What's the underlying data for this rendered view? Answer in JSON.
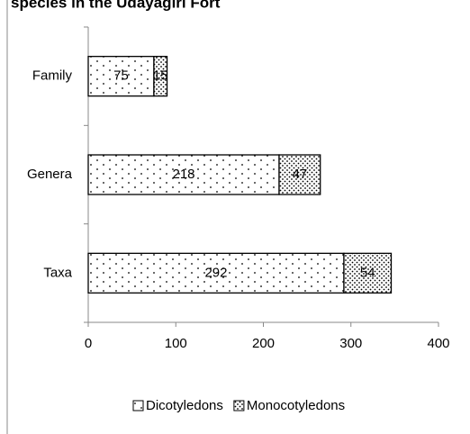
{
  "chart_data": {
    "type": "stacked-barh",
    "title": "species in the Udayagiri Fort",
    "categories": [
      "Family",
      "Genera",
      "Taxa"
    ],
    "series": [
      {
        "name": "Dicotyledons",
        "color": "#000000",
        "values": [
          75,
          218,
          292
        ]
      },
      {
        "name": "Monocotyledons",
        "color": "#000000",
        "values": [
          15,
          47,
          54
        ]
      }
    ],
    "xlim": [
      0,
      400
    ],
    "xticks": [
      0,
      100,
      200,
      300,
      400
    ],
    "legend": "bottom"
  }
}
